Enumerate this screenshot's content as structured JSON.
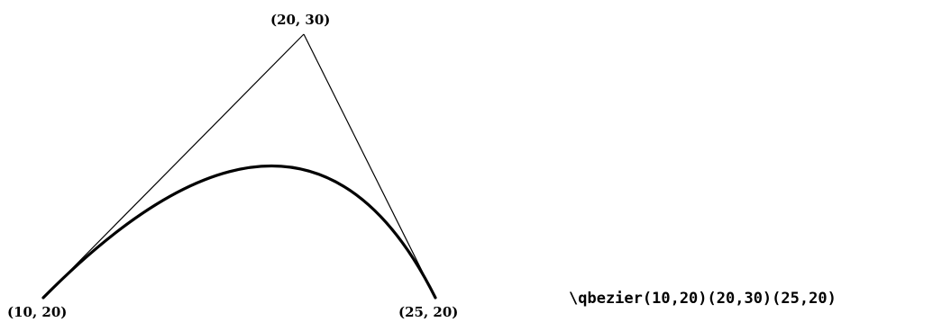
{
  "points": {
    "start": {
      "label": "(10, 20)",
      "x": 10,
      "y": 20
    },
    "control": {
      "label": "(20, 30)",
      "x": 20,
      "y": 30
    },
    "end": {
      "label": "(25, 20)",
      "x": 25,
      "y": 20
    }
  },
  "command": "\\qbezier(10,20)(20,30)(25,20)"
}
